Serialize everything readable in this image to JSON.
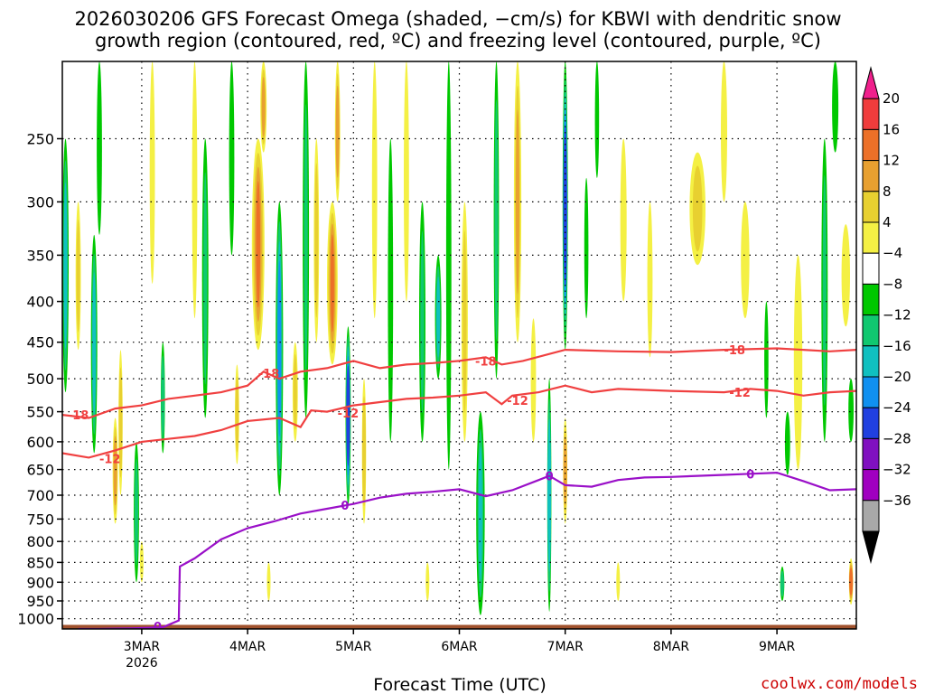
{
  "chart_data": {
    "type": "heatmap",
    "title_line1": "2026030206 GFS Forecast Omega (shaded, −cm/s) for KBWI with dendritic snow",
    "title_line2": "growth region (contoured, red, ºC) and freezing level (contoured, purple, ºC)",
    "xlabel": "Forecast Time (UTC)",
    "ylabel": "",
    "credit": "coolwx.com/models",
    "x_ticks": [
      {
        "label": "3MAR",
        "sub": "2026",
        "day": 3
      },
      {
        "label": "4MAR",
        "sub": "",
        "day": 4
      },
      {
        "label": "5MAR",
        "sub": "",
        "day": 5
      },
      {
        "label": "6MAR",
        "sub": "",
        "day": 6
      },
      {
        "label": "7MAR",
        "sub": "",
        "day": 7
      },
      {
        "label": "8MAR",
        "sub": "",
        "day": 8
      },
      {
        "label": "9MAR",
        "sub": "",
        "day": 9
      }
    ],
    "xlim": [
      2.25,
      9.75
    ],
    "y_ticks": [
      250,
      300,
      350,
      400,
      450,
      500,
      550,
      600,
      650,
      700,
      750,
      800,
      850,
      900,
      950,
      1000
    ],
    "ylim": [
      1030,
      200
    ],
    "yscale": "log-pressure",
    "colorbar": {
      "labels": [
        "20",
        "16",
        "12",
        "8",
        "4",
        "−4",
        "−8",
        "−12",
        "−16",
        "−20",
        "−24",
        "−28",
        "−32",
        "−36"
      ],
      "colors": [
        "#f0208c",
        "#f03c3c",
        "#ec7028",
        "#e8a030",
        "#e8d030",
        "#f4f044",
        "#ffffff",
        "#00c800",
        "#10c870",
        "#10c0c0",
        "#1090f0",
        "#2040e0",
        "#8010c0",
        "#a000c0",
        "#a8a8a8",
        "#000000"
      ]
    },
    "contours": [
      {
        "name": "-18 C isotherm",
        "label": "-18",
        "color": "#f04040",
        "points": [
          [
            2.25,
            555
          ],
          [
            2.5,
            560
          ],
          [
            2.75,
            545
          ],
          [
            3.0,
            540
          ],
          [
            3.25,
            530
          ],
          [
            3.5,
            525
          ],
          [
            3.75,
            520
          ],
          [
            4.0,
            510
          ],
          [
            4.15,
            490
          ],
          [
            4.3,
            500
          ],
          [
            4.5,
            490
          ],
          [
            4.75,
            485
          ],
          [
            5.0,
            475
          ],
          [
            5.25,
            485
          ],
          [
            5.5,
            480
          ],
          [
            5.75,
            478
          ],
          [
            6.0,
            475
          ],
          [
            6.25,
            470
          ],
          [
            6.4,
            480
          ],
          [
            6.6,
            475
          ],
          [
            7.0,
            460
          ],
          [
            7.5,
            462
          ],
          [
            8.0,
            463
          ],
          [
            8.5,
            460
          ],
          [
            9.0,
            458
          ],
          [
            9.5,
            462
          ],
          [
            9.75,
            460
          ]
        ],
        "label_positions": [
          [
            2.4,
            555
          ],
          [
            4.2,
            492
          ],
          [
            6.25,
            475
          ],
          [
            8.6,
            460
          ]
        ]
      },
      {
        "name": "-12 C isotherm",
        "label": "-12",
        "color": "#f04040",
        "points": [
          [
            2.25,
            620
          ],
          [
            2.5,
            628
          ],
          [
            2.75,
            615
          ],
          [
            3.0,
            600
          ],
          [
            3.25,
            595
          ],
          [
            3.5,
            590
          ],
          [
            3.75,
            580
          ],
          [
            4.0,
            565
          ],
          [
            4.3,
            560
          ],
          [
            4.5,
            575
          ],
          [
            4.6,
            548
          ],
          [
            4.75,
            550
          ],
          [
            5.0,
            540
          ],
          [
            5.25,
            535
          ],
          [
            5.5,
            530
          ],
          [
            5.75,
            528
          ],
          [
            6.0,
            525
          ],
          [
            6.25,
            520
          ],
          [
            6.4,
            538
          ],
          [
            6.5,
            525
          ],
          [
            6.75,
            520
          ],
          [
            7.0,
            510
          ],
          [
            7.25,
            520
          ],
          [
            7.5,
            515
          ],
          [
            8.0,
            518
          ],
          [
            8.5,
            520
          ],
          [
            8.75,
            515
          ],
          [
            9.0,
            518
          ],
          [
            9.25,
            525
          ],
          [
            9.5,
            520
          ],
          [
            9.75,
            518
          ]
        ],
        "label_positions": [
          [
            2.7,
            630
          ],
          [
            4.95,
            552
          ],
          [
            6.55,
            532
          ],
          [
            8.65,
            520
          ]
        ]
      },
      {
        "name": "0 C freezing level",
        "label": "0",
        "color": "#9a10c8",
        "points": [
          [
            2.4,
            1030
          ],
          [
            2.6,
            1030
          ],
          [
            2.9,
            1028
          ],
          [
            3.2,
            1025
          ],
          [
            3.35,
            1005
          ],
          [
            3.36,
            860
          ],
          [
            3.5,
            840
          ],
          [
            3.75,
            795
          ],
          [
            4.0,
            770
          ],
          [
            4.25,
            755
          ],
          [
            4.5,
            738
          ],
          [
            4.75,
            728
          ],
          [
            5.0,
            718
          ],
          [
            5.25,
            705
          ],
          [
            5.5,
            697
          ],
          [
            5.75,
            693
          ],
          [
            6.0,
            688
          ],
          [
            6.25,
            702
          ],
          [
            6.5,
            690
          ],
          [
            6.75,
            670
          ],
          [
            6.85,
            662
          ],
          [
            7.0,
            680
          ],
          [
            7.25,
            683
          ],
          [
            7.5,
            670
          ],
          [
            7.75,
            665
          ],
          [
            8.0,
            664
          ],
          [
            8.25,
            662
          ],
          [
            8.5,
            660
          ],
          [
            8.75,
            658
          ],
          [
            9.0,
            656
          ],
          [
            9.25,
            672
          ],
          [
            9.5,
            690
          ],
          [
            9.75,
            688
          ]
        ],
        "label_positions": [
          [
            3.15,
            1022
          ],
          [
            4.92,
            720
          ],
          [
            6.85,
            662
          ],
          [
            8.75,
            658
          ]
        ]
      }
    ],
    "shaded_features": "omega shading: alternating vertical bands of ascent (yellow-orange-red) and descent (green-cyan-blue-purple), strongest ascent near 4MAR-5MAR around 300-400 mb",
    "terrain": {
      "color": "#a0522d",
      "top_pressure": 1018
    }
  }
}
